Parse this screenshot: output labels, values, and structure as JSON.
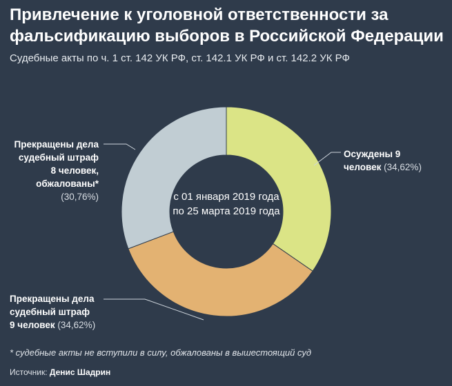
{
  "title": "Привлечение к уголовной ответственности за фальсификацию выборов в Российской Федерации",
  "subtitle": "Судебные акты по ч. 1 ст. 142 УК РФ, ст. 142.1 УК РФ и ст. 142.2 УК РФ",
  "center_text": "с 01 января 2019 года по 25 марта 2019 года",
  "footnote": "* судебные акты не вступили в силу, обжалованы в вышестоящий суд",
  "source": {
    "prefix": "Источник:",
    "name": "Денис Шадрин"
  },
  "colors": {
    "background": "#2f3b4b",
    "convicted": "#dbe486",
    "fine": "#e3b272",
    "appealed": "#c1cdd3"
  },
  "chart_data": {
    "type": "pie",
    "subtype": "donut",
    "unit": "человек",
    "slices": [
      {
        "label": "Осуждены 9 человек",
        "value": 9,
        "percent": 34.62,
        "percent_label": "(34,62%)",
        "color": "#dbe486"
      },
      {
        "label": "Прекращены дела судебный штраф 9 человек",
        "value": 9,
        "percent": 34.62,
        "percent_label": "(34,62%)",
        "color": "#e3b272"
      },
      {
        "label": "Прекращены дела судебный штраф 8 человек, обжалованы*",
        "value": 8,
        "percent": 30.76,
        "percent_label": "(30,76%)",
        "color": "#c1cdd3"
      }
    ]
  },
  "labels": {
    "convicted": {
      "line1": "Осуждены 9",
      "line2": "человек",
      "pct": "(34,62%)"
    },
    "fine": {
      "line1": "Прекращены дела",
      "line2": "судебный штраф",
      "line3": "9 человек",
      "pct": "(34,62%)"
    },
    "appealed": {
      "line1": "Прекращены дела",
      "line2": "судебный штраф",
      "line3": "8 человек,",
      "line4": "обжалованы*",
      "pct": "(30,76%)"
    }
  }
}
